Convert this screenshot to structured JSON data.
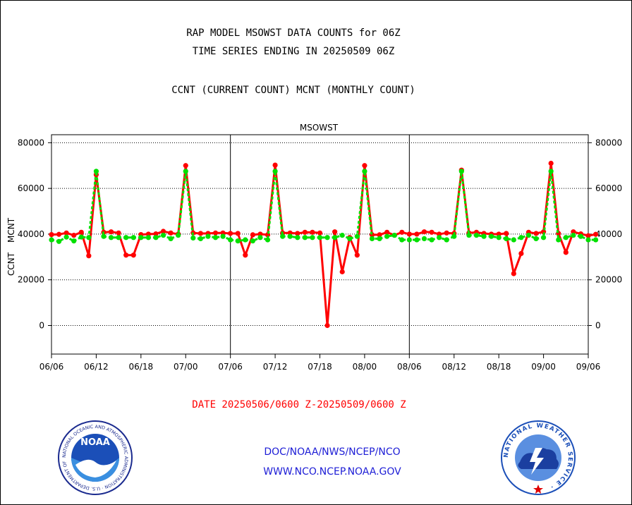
{
  "titles": {
    "line1": "RAP MODEL MSOWST DATA COUNTS for 06Z",
    "line2": "TIME SERIES ENDING IN 20250509 06Z",
    "line3": "CCNT (CURRENT COUNT) MCNT (MONTHLY COUNT)"
  },
  "date_range": "DATE 20250506/0600 Z-20250509/0600 Z",
  "footer": {
    "org": "DOC/NOAA/NWS/NCEP/NCO",
    "url": "WWW.NCO.NCEP.NOAA.GOV"
  },
  "logos": {
    "noaa_label": "NOAA",
    "noaa_ring_text": "NATIONAL OCEANIC AND ATMOSPHERIC ADMINISTRATION · U.S. DEPARTMENT OF COMMERCE ·",
    "nws_ring_text": "NATIONAL WEATHER SERVICE ·"
  },
  "colors": {
    "ccnt": "#ff0000",
    "mcnt": "#00e000",
    "title_blue": "#1d1dd6",
    "footer_blue": "#1d1dd6"
  },
  "chart_data": {
    "type": "line",
    "title": "MSOWST",
    "ylabel_series": [
      "CCNT",
      "MCNT"
    ],
    "ylim": [
      -12500,
      83500
    ],
    "y_ticks": [
      0,
      20000,
      40000,
      60000,
      80000
    ],
    "y_tick_labels": [
      "0",
      "20000",
      "40000",
      "60000",
      "80000"
    ],
    "x_tick_labels": [
      "06/06",
      "06/12",
      "06/18",
      "07/00",
      "07/06",
      "07/12",
      "07/18",
      "08/00",
      "08/06",
      "08/12",
      "08/18",
      "09/00",
      "09/06"
    ],
    "grid": true,
    "x_steps_per_day": 24,
    "x_total_steps": 72,
    "series": [
      {
        "name": "CCNT",
        "color": "#ff0000",
        "values": [
          39800,
          39900,
          40500,
          39500,
          40800,
          30500,
          66000,
          40800,
          41000,
          40500,
          30800,
          30800,
          39800,
          40000,
          40100,
          41200,
          40500,
          40000,
          70000,
          40500,
          40300,
          40300,
          40500,
          40500,
          40300,
          40300,
          30800,
          39700,
          40000,
          39700,
          70200,
          40500,
          40500,
          40300,
          40800,
          40800,
          40500,
          0,
          41000,
          23500,
          38500,
          30800,
          70000,
          39700,
          39700,
          40800,
          39500,
          40800,
          40000,
          40000,
          41000,
          40800,
          40000,
          40500,
          40300,
          68000,
          40500,
          40800,
          40300,
          40000,
          40000,
          40300,
          22700,
          31500,
          40800,
          40300,
          41000,
          71000,
          40300,
          32000,
          41000,
          40100,
          39300,
          39900
        ]
      },
      {
        "name": "MCNT",
        "color": "#00e000",
        "values": [
          37500,
          36800,
          38700,
          37000,
          38700,
          38500,
          67500,
          39000,
          38500,
          38500,
          38500,
          38500,
          38500,
          38500,
          38500,
          39500,
          38000,
          39500,
          67500,
          38300,
          38000,
          39000,
          38500,
          39000,
          37500,
          37000,
          37500,
          37000,
          38500,
          37500,
          67500,
          39000,
          39000,
          38500,
          38500,
          38500,
          38500,
          38500,
          38500,
          39500,
          38000,
          39000,
          67500,
          38000,
          38000,
          39000,
          39500,
          37500,
          37500,
          37500,
          38000,
          37500,
          38500,
          37500,
          39000,
          67500,
          39500,
          39500,
          39000,
          39000,
          38500,
          38000,
          37500,
          38500,
          39500,
          38000,
          38500,
          67500,
          37500,
          38500,
          39500,
          39000,
          37500,
          37500
        ]
      }
    ]
  }
}
